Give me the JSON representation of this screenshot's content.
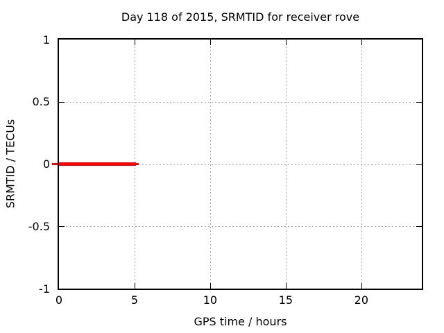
{
  "chart_data": {
    "type": "line",
    "title": "Day 118 of 2015, SRMTID for receiver rove",
    "xlabel": "GPS time / hours",
    "ylabel": "SRMTID / TECUs",
    "xlim": [
      0,
      24
    ],
    "ylim": [
      -1,
      1
    ],
    "xticks": [
      0,
      5,
      10,
      15,
      20
    ],
    "xtick_labels": [
      "0",
      "5",
      "10",
      "15",
      "20"
    ],
    "yticks": [
      1,
      0.5,
      0,
      -0.5,
      -1
    ],
    "ytick_labels": [
      "1",
      "0.5",
      "0",
      "-0.5",
      "-1"
    ],
    "grid": true,
    "grid_style": "dotted",
    "legend": "none",
    "colors": {
      "background": "#ffffff",
      "border": "#000000",
      "grid": "#a8a8a8",
      "text": "#000000",
      "series": "#ff0000"
    },
    "series": [
      {
        "name": "SRMTID",
        "color": "#ff0000",
        "description": "thick flat red line at y = 0 spanning roughly 0 to 5.2 hours, with a small thin red dash just outside the left axis",
        "y": 0,
        "x_start": 0,
        "x_end": 5.26,
        "segments": [
          {
            "x1": -0.45,
            "x2": -0.09,
            "y": 0,
            "px": 3
          },
          {
            "x1": 0.0,
            "x2": 5.1,
            "y": 0,
            "px": 5
          },
          {
            "x1": 5.1,
            "x2": 5.28,
            "y": 0,
            "px": 3
          }
        ]
      }
    ]
  }
}
